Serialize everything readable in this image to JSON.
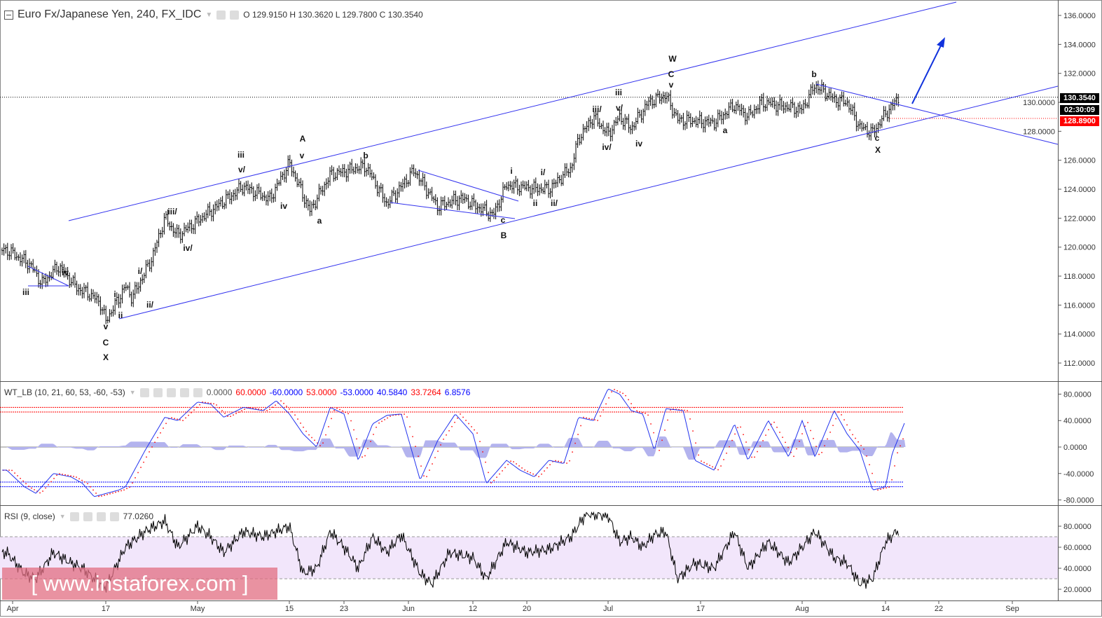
{
  "header": {
    "symbol": "Euro Fx/Japanese Yen, 240, FX_IDC",
    "ohlc": "O 129.9150 H 130.3620 L 129.7800 C 130.3540"
  },
  "wt_legend": {
    "title": "WT_LB (10, 21, 60, 53, -60, -53)",
    "values": [
      {
        "text": "0.0000",
        "color": "#555555"
      },
      {
        "text": "60.0000",
        "color": "#ff0000"
      },
      {
        "text": "-60.0000",
        "color": "#0000ff"
      },
      {
        "text": "53.0000",
        "color": "#ff0000"
      },
      {
        "text": "-53.0000",
        "color": "#0000ff"
      },
      {
        "text": "40.5840",
        "color": "#0000ff"
      },
      {
        "text": "33.7264",
        "color": "#ff0000"
      },
      {
        "text": "6.8576",
        "color": "#0000ff"
      }
    ]
  },
  "rsi_legend": {
    "title": "RSI (9, close)",
    "value": "77.0260"
  },
  "price_tags": {
    "last": "130.3540",
    "countdown": "02:30:09",
    "level": "128.8900"
  },
  "watermark": "[ www.instaforex.com ]",
  "colors": {
    "drawing": "#3333ee",
    "last_tag": "#000000",
    "level_tag": "#ff0000",
    "rsi_band": "#f2e6fb",
    "wt_fill": "#b3b3ee"
  },
  "wave_labels": [
    "iii",
    "iv",
    "i/",
    "i",
    "ii",
    "ii/",
    "v",
    "C",
    "X",
    "iii/",
    "iv/",
    "iii",
    "v/",
    "iv",
    "A",
    "v",
    "a",
    "b",
    "c",
    "B",
    "i",
    "i/",
    "ii",
    "ii/",
    "iii/",
    "iv/",
    "v/",
    "iii",
    "iv",
    "W",
    "C",
    "v",
    "a",
    "b",
    "c",
    "X"
  ],
  "chart_data": [
    {
      "type": "candlestick",
      "title": "Euro Fx/Japanese Yen, 240, FX_IDC",
      "ylim": [
        111,
        137
      ],
      "y_ticks": [
        "136.0000",
        "134.0000",
        "132.0000",
        "130.0000",
        "128.0000",
        "126.0000",
        "124.0000",
        "122.0000",
        "120.0000",
        "118.0000",
        "116.0000",
        "114.0000",
        "112.0000"
      ],
      "x_ticks": [
        {
          "date": "04-01",
          "label": "Apr"
        },
        {
          "date": "04-17",
          "label": "17"
        },
        {
          "date": "05-01",
          "label": "May"
        },
        {
          "date": "05-15",
          "label": "15"
        },
        {
          "date": "05-23",
          "label": "23"
        },
        {
          "date": "06-01",
          "label": "Jun"
        },
        {
          "date": "06-12",
          "label": "12"
        },
        {
          "date": "06-20",
          "label": "20"
        },
        {
          "date": "07-01",
          "label": "Jul"
        },
        {
          "date": "07-17",
          "label": "17"
        },
        {
          "date": "08-01",
          "label": "Aug"
        },
        {
          "date": "08-14",
          "label": "14"
        },
        {
          "date": "08-22",
          "label": "22"
        },
        {
          "date": "09-01",
          "label": "Sep"
        }
      ],
      "last_price": 130.354,
      "level": 128.89,
      "price_path": [
        [
          "03-31",
          119.8
        ],
        [
          "04-04",
          118.8
        ],
        [
          "04-06",
          117.5
        ],
        [
          "04-09",
          118.7
        ],
        [
          "04-12",
          117.2
        ],
        [
          "04-14",
          116.8
        ],
        [
          "04-16",
          116.2
        ],
        [
          "04-17",
          114.9
        ],
        [
          "04-20",
          117.3
        ],
        [
          "04-21",
          116.5
        ],
        [
          "04-24",
          119.2
        ],
        [
          "04-26",
          122.0
        ],
        [
          "04-28",
          120.8
        ],
        [
          "05-03",
          122.5
        ],
        [
          "05-08",
          124.2
        ],
        [
          "05-12",
          123.3
        ],
        [
          "05-15",
          125.8
        ],
        [
          "05-18",
          122.5
        ],
        [
          "05-21",
          125.0
        ],
        [
          "05-26",
          125.6
        ],
        [
          "05-29",
          123.0
        ],
        [
          "06-02",
          125.3
        ],
        [
          "06-06",
          122.8
        ],
        [
          "06-10",
          123.4
        ],
        [
          "06-15",
          122.2
        ],
        [
          "06-17",
          124.3
        ],
        [
          "06-20",
          124.1
        ],
        [
          "06-23",
          124.0
        ],
        [
          "06-26",
          125.5
        ],
        [
          "06-27",
          127.5
        ],
        [
          "06-29",
          129.0
        ],
        [
          "07-01",
          127.8
        ],
        [
          "07-03",
          129.0
        ],
        [
          "07-05",
          128.2
        ],
        [
          "07-08",
          130.0
        ],
        [
          "07-11",
          130.5
        ],
        [
          "07-13",
          128.8
        ],
        [
          "07-19",
          128.6
        ],
        [
          "07-22",
          129.8
        ],
        [
          "07-24",
          129.0
        ],
        [
          "07-26",
          130.0
        ],
        [
          "08-01",
          129.5
        ],
        [
          "08-03",
          131.2
        ],
        [
          "08-06",
          130.2
        ],
        [
          "08-08",
          130.0
        ],
        [
          "08-10",
          128.3
        ],
        [
          "08-12",
          127.9
        ],
        [
          "08-14",
          129.2
        ],
        [
          "08-16",
          130.35
        ]
      ]
    },
    {
      "type": "line",
      "title": "WT_LB (10, 21, 60, 53, -60, -53)",
      "ylim": [
        -85,
        90
      ],
      "y_ticks": [
        "80.0000",
        "40.0000",
        "0.0000",
        "-40.0000",
        "-80.0000"
      ],
      "levels": [
        60,
        53,
        0,
        -53,
        -60
      ],
      "wt1_path": [
        [
          "03-31",
          -35
        ],
        [
          "04-03",
          -60
        ],
        [
          "04-05",
          -70
        ],
        [
          "04-08",
          -40
        ],
        [
          "04-11",
          -45
        ],
        [
          "04-13",
          -55
        ],
        [
          "04-15",
          -75
        ],
        [
          "04-19",
          -65
        ],
        [
          "04-20",
          -60
        ],
        [
          "04-23",
          -5
        ],
        [
          "04-26",
          45
        ],
        [
          "04-28",
          40
        ],
        [
          "05-01",
          68
        ],
        [
          "05-03",
          65
        ],
        [
          "05-05",
          45
        ],
        [
          "05-08",
          60
        ],
        [
          "05-11",
          55
        ],
        [
          "05-13",
          70
        ],
        [
          "05-15",
          50
        ],
        [
          "05-17",
          20
        ],
        [
          "05-19",
          0
        ],
        [
          "05-21",
          60
        ],
        [
          "05-23",
          50
        ],
        [
          "05-25",
          -20
        ],
        [
          "05-27",
          35
        ],
        [
          "05-29",
          48
        ],
        [
          "05-31",
          50
        ],
        [
          "06-03",
          -50
        ],
        [
          "06-06",
          10
        ],
        [
          "06-09",
          50
        ],
        [
          "06-12",
          20
        ],
        [
          "06-14",
          -55
        ],
        [
          "06-17",
          -20
        ],
        [
          "06-19",
          -35
        ],
        [
          "06-21",
          -45
        ],
        [
          "06-23",
          -20
        ],
        [
          "06-25",
          -25
        ],
        [
          "06-27",
          45
        ],
        [
          "06-29",
          40
        ],
        [
          "07-01",
          88
        ],
        [
          "07-03",
          80
        ],
        [
          "07-05",
          55
        ],
        [
          "07-07",
          50
        ],
        [
          "07-09",
          -5
        ],
        [
          "07-11",
          58
        ],
        [
          "07-14",
          55
        ],
        [
          "07-16",
          -20
        ],
        [
          "07-19",
          -35
        ],
        [
          "07-22",
          35
        ],
        [
          "07-24",
          -20
        ],
        [
          "07-27",
          40
        ],
        [
          "07-30",
          -15
        ],
        [
          "08-01",
          40
        ],
        [
          "08-03",
          -15
        ],
        [
          "08-06",
          55
        ],
        [
          "08-08",
          20
        ],
        [
          "08-10",
          -5
        ],
        [
          "08-12",
          -65
        ],
        [
          "08-14",
          -60
        ],
        [
          "08-15",
          -10
        ],
        [
          "08-17",
          40
        ]
      ]
    },
    {
      "type": "line",
      "title": "RSI (9, close)",
      "ylim": [
        10,
        95
      ],
      "y_ticks": [
        "80.0000",
        "60.0000",
        "40.0000",
        "20.0000"
      ],
      "band": [
        30,
        70
      ],
      "rsi_path": [
        [
          "03-31",
          55
        ],
        [
          "04-03",
          35
        ],
        [
          "04-05",
          30
        ],
        [
          "04-08",
          55
        ],
        [
          "04-11",
          45
        ],
        [
          "04-13",
          40
        ],
        [
          "04-15",
          30
        ],
        [
          "04-17",
          22
        ],
        [
          "04-20",
          60
        ],
        [
          "04-23",
          75
        ],
        [
          "04-26",
          85
        ],
        [
          "04-28",
          60
        ],
        [
          "05-01",
          80
        ],
        [
          "05-03",
          70
        ],
        [
          "05-05",
          55
        ],
        [
          "05-08",
          75
        ],
        [
          "05-11",
          70
        ],
        [
          "05-13",
          75
        ],
        [
          "05-15",
          80
        ],
        [
          "05-17",
          35
        ],
        [
          "05-19",
          40
        ],
        [
          "05-21",
          75
        ],
        [
          "05-23",
          60
        ],
        [
          "05-25",
          40
        ],
        [
          "05-27",
          70
        ],
        [
          "05-29",
          55
        ],
        [
          "05-31",
          72
        ],
        [
          "06-03",
          35
        ],
        [
          "06-05",
          25
        ],
        [
          "06-08",
          55
        ],
        [
          "06-12",
          50
        ],
        [
          "06-14",
          30
        ],
        [
          "06-17",
          65
        ],
        [
          "06-20",
          55
        ],
        [
          "06-23",
          58
        ],
        [
          "06-26",
          70
        ],
        [
          "06-28",
          92
        ],
        [
          "07-01",
          90
        ],
        [
          "07-03",
          65
        ],
        [
          "07-05",
          70
        ],
        [
          "07-07",
          60
        ],
        [
          "07-09",
          72
        ],
        [
          "07-11",
          75
        ],
        [
          "07-13",
          30
        ],
        [
          "07-16",
          45
        ],
        [
          "07-19",
          40
        ],
        [
          "07-22",
          75
        ],
        [
          "07-24",
          40
        ],
        [
          "07-27",
          65
        ],
        [
          "07-30",
          45
        ],
        [
          "08-01",
          60
        ],
        [
          "08-03",
          75
        ],
        [
          "08-06",
          50
        ],
        [
          "08-08",
          45
        ],
        [
          "08-10",
          25
        ],
        [
          "08-12",
          30
        ],
        [
          "08-14",
          65
        ],
        [
          "08-16",
          77
        ]
      ]
    }
  ]
}
